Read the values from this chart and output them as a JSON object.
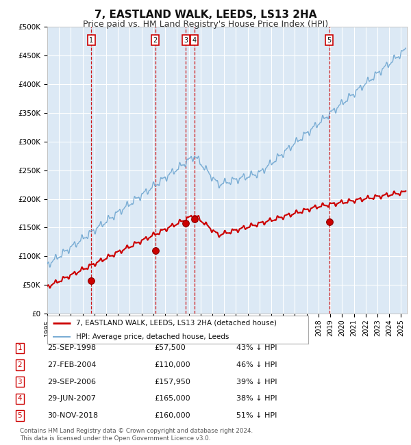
{
  "title": "7, EASTLAND WALK, LEEDS, LS13 2HA",
  "subtitle": "Price paid vs. HM Land Registry's House Price Index (HPI)",
  "title_fontsize": 11,
  "subtitle_fontsize": 9,
  "background_color": "#ffffff",
  "plot_bg_color": "#dce9f5",
  "grid_color": "#ffffff",
  "ylim": [
    0,
    500000
  ],
  "yticks": [
    0,
    50000,
    100000,
    150000,
    200000,
    250000,
    300000,
    350000,
    400000,
    450000,
    500000
  ],
  "ytick_labels": [
    "£0",
    "£50K",
    "£100K",
    "£150K",
    "£200K",
    "£250K",
    "£300K",
    "£350K",
    "£400K",
    "£450K",
    "£500K"
  ],
  "purchases": [
    {
      "label": "1",
      "date_num": 1998.73,
      "price": 57500
    },
    {
      "label": "2",
      "date_num": 2004.15,
      "price": 110000
    },
    {
      "label": "3",
      "date_num": 2006.75,
      "price": 157950
    },
    {
      "label": "4",
      "date_num": 2007.49,
      "price": 165000
    },
    {
      "label": "5",
      "date_num": 2018.91,
      "price": 160000
    }
  ],
  "purchase_color": "#cc0000",
  "hpi_color": "#7aadd4",
  "legend_label_red": "7, EASTLAND WALK, LEEDS, LS13 2HA (detached house)",
  "legend_label_blue": "HPI: Average price, detached house, Leeds",
  "table_rows": [
    {
      "num": "1",
      "date": "25-SEP-1998",
      "price": "£57,500",
      "hpi": "43% ↓ HPI"
    },
    {
      "num": "2",
      "date": "27-FEB-2004",
      "price": "£110,000",
      "hpi": "46% ↓ HPI"
    },
    {
      "num": "3",
      "date": "29-SEP-2006",
      "price": "£157,950",
      "hpi": "39% ↓ HPI"
    },
    {
      "num": "4",
      "date": "29-JUN-2007",
      "price": "£165,000",
      "hpi": "38% ↓ HPI"
    },
    {
      "num": "5",
      "date": "30-NOV-2018",
      "price": "£160,000",
      "hpi": "51% ↓ HPI"
    }
  ],
  "footer": "Contains HM Land Registry data © Crown copyright and database right 2024.\nThis data is licensed under the Open Government Licence v3.0.",
  "xmin": 1995,
  "xmax": 2025.5
}
